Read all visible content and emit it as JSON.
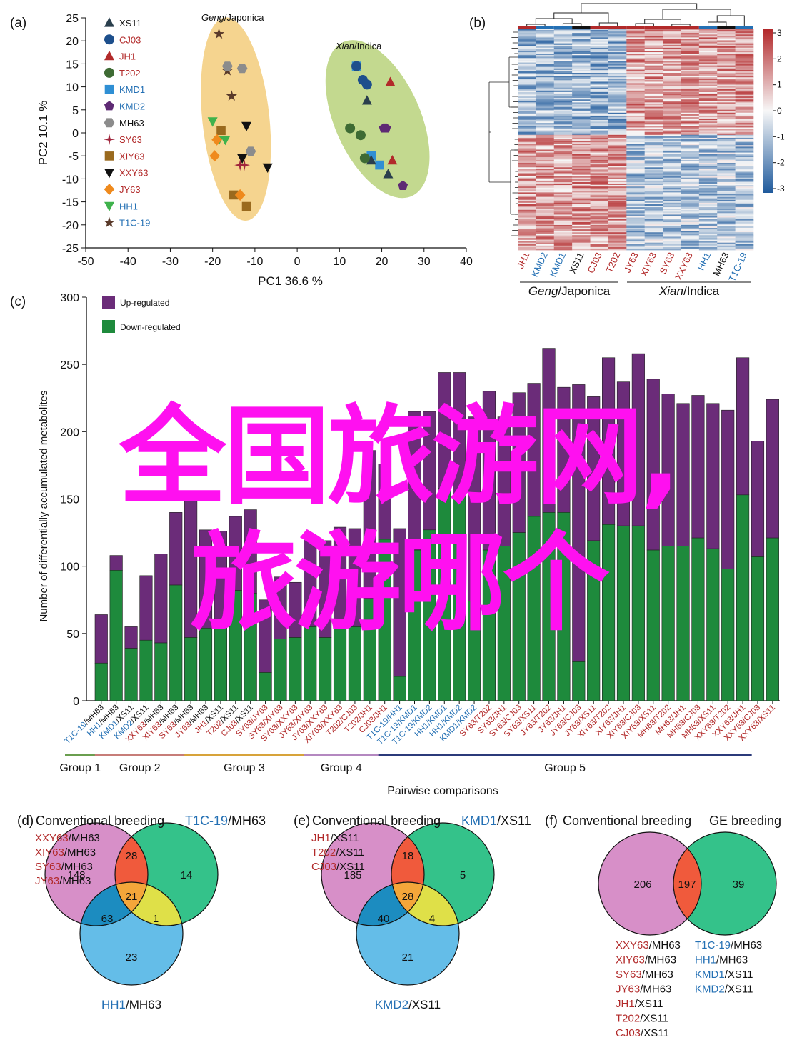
{
  "panel_labels": {
    "a": "(a)",
    "b": "(b)",
    "c": "(c)",
    "d": "(d)",
    "e": "(e)",
    "f": "(f)"
  },
  "colors": {
    "red": "#b22a2a",
    "blue": "#2470b4",
    "black": "#111111",
    "purple": "#6b2c79",
    "green": "#1e8a3c",
    "group1": "#6a9e4f",
    "group2": "#c77d78",
    "group3": "#d7a33a",
    "group4": "#b488c0",
    "group5": "#2b3a7a"
  },
  "overlay": {
    "line1": "全国旅游网,",
    "line2": "旅游哪个"
  },
  "chart_data": [
    {
      "type": "scatter",
      "panel": "a",
      "xlabel": "PC1 36.6 %",
      "ylabel": "PC2 10.1 %",
      "xlim": [
        -50,
        40
      ],
      "ylim": [
        -25,
        25
      ],
      "xticks": [
        "-50",
        "-40",
        "-30",
        "-20",
        "-10",
        "0",
        "10",
        "20",
        "30",
        "40"
      ],
      "yticks": [
        "-25",
        "-20",
        "-15",
        "-10",
        "-5",
        "0",
        "5",
        "10",
        "15",
        "20",
        "25"
      ],
      "clusters": [
        {
          "label": "Geng/Japonica",
          "italic": "Geng",
          "rest": "/Japonica",
          "color": "#f5d48f"
        },
        {
          "label": "Xian/Indica",
          "italic": "Xian",
          "rest": "/Indica",
          "color": "#c3d98f"
        }
      ],
      "legend": [
        {
          "name": "XS11",
          "marker": "triangle-up",
          "color": "#2a3f4d",
          "text_color": "#111111"
        },
        {
          "name": "CJ03",
          "marker": "circle",
          "color": "#1d4f8c",
          "text_color": "#b22a2a"
        },
        {
          "name": "JH1",
          "marker": "triangle-up",
          "color": "#b22a2a",
          "text_color": "#b22a2a"
        },
        {
          "name": "T202",
          "marker": "circle",
          "color": "#3e6b34",
          "text_color": "#b22a2a"
        },
        {
          "name": "KMD1",
          "marker": "square",
          "color": "#2f8fd4",
          "text_color": "#2470b4"
        },
        {
          "name": "KMD2",
          "marker": "pentagon",
          "color": "#5e2a74",
          "text_color": "#2470b4"
        },
        {
          "name": "MH63",
          "marker": "hexagon",
          "color": "#8c8c8c",
          "text_color": "#111111"
        },
        {
          "name": "SY63",
          "marker": "star4",
          "color": "#a0253c",
          "text_color": "#b22a2a"
        },
        {
          "name": "XIY63",
          "marker": "square",
          "color": "#9a6a1e",
          "text_color": "#b22a2a"
        },
        {
          "name": "XXY63",
          "marker": "triangle-down",
          "color": "#111111",
          "text_color": "#b22a2a"
        },
        {
          "name": "JY63",
          "marker": "diamond",
          "color": "#ef8a1d",
          "text_color": "#b22a2a"
        },
        {
          "name": "HH1",
          "marker": "triangle-down",
          "color": "#3fb24c",
          "text_color": "#2470b4"
        },
        {
          "name": "T1C-19",
          "marker": "star5",
          "color": "#5a3a2a",
          "text_color": "#2470b4"
        }
      ],
      "points": [
        {
          "s": "T1C-19",
          "x": -18.5,
          "y": 21.5
        },
        {
          "s": "T1C-19",
          "x": -16.5,
          "y": 13.5
        },
        {
          "s": "T1C-19",
          "x": -15.5,
          "y": 8
        },
        {
          "s": "MH63",
          "x": -16.5,
          "y": 14.5
        },
        {
          "s": "MH63",
          "x": -13,
          "y": 14
        },
        {
          "s": "MH63",
          "x": -11,
          "y": -4
        },
        {
          "s": "XXY63",
          "x": -12,
          "y": 1.5
        },
        {
          "s": "XXY63",
          "x": -13,
          "y": -5.5
        },
        {
          "s": "XXY63",
          "x": -7,
          "y": -7.5
        },
        {
          "s": "HH1",
          "x": -20,
          "y": 2.5
        },
        {
          "s": "HH1",
          "x": -18.5,
          "y": -1.5
        },
        {
          "s": "HH1",
          "x": -17,
          "y": -1.5
        },
        {
          "s": "XIY63",
          "x": -18,
          "y": 0.5
        },
        {
          "s": "XIY63",
          "x": -15,
          "y": -13.5
        },
        {
          "s": "XIY63",
          "x": -12,
          "y": -16
        },
        {
          "s": "JY63",
          "x": -19,
          "y": -1.5
        },
        {
          "s": "JY63",
          "x": -19.5,
          "y": -5
        },
        {
          "s": "JY63",
          "x": -13.5,
          "y": -13.5
        },
        {
          "s": "SY63",
          "x": -13.5,
          "y": -7
        },
        {
          "s": "SY63",
          "x": -12.5,
          "y": -7
        },
        {
          "s": "KMD1",
          "x": 14,
          "y": 14.5
        },
        {
          "s": "KMD1",
          "x": 17.5,
          "y": -5
        },
        {
          "s": "KMD1",
          "x": 19.5,
          "y": -7
        },
        {
          "s": "CJ03",
          "x": 14,
          "y": 14.5
        },
        {
          "s": "CJ03",
          "x": 15.5,
          "y": 11.5
        },
        {
          "s": "CJ03",
          "x": 16.5,
          "y": 10.5
        },
        {
          "s": "JH1",
          "x": 22,
          "y": 11
        },
        {
          "s": "JH1",
          "x": 22.5,
          "y": -6
        },
        {
          "s": "XS11",
          "x": 16.5,
          "y": 7
        },
        {
          "s": "XS11",
          "x": 17.5,
          "y": -6
        },
        {
          "s": "XS11",
          "x": 21.5,
          "y": -9
        },
        {
          "s": "T202",
          "x": 12.5,
          "y": 1
        },
        {
          "s": "T202",
          "x": 15,
          "y": -0.5
        },
        {
          "s": "T202",
          "x": 16,
          "y": -5.5
        },
        {
          "s": "KMD2",
          "x": 20.5,
          "y": 1
        },
        {
          "s": "KMD2",
          "x": 21,
          "y": 1
        },
        {
          "s": "KMD2",
          "x": 25,
          "y": -11.5
        }
      ]
    },
    {
      "type": "heatmap",
      "panel": "b",
      "colorbar_ticks": [
        "3",
        "2",
        "1",
        "0",
        "-1",
        "-2",
        "-3"
      ],
      "columns": [
        {
          "name": "JH1",
          "color": "#b22a2a"
        },
        {
          "name": "KMD2",
          "color": "#2470b4"
        },
        {
          "name": "KMD1",
          "color": "#2470b4"
        },
        {
          "name": "XS11",
          "color": "#111111"
        },
        {
          "name": "CJ03",
          "color": "#b22a2a"
        },
        {
          "name": "T202",
          "color": "#b22a2a"
        },
        {
          "name": "JY63",
          "color": "#b22a2a"
        },
        {
          "name": "XIY63",
          "color": "#b22a2a"
        },
        {
          "name": "SY63",
          "color": "#b22a2a"
        },
        {
          "name": "XXY63",
          "color": "#b22a2a"
        },
        {
          "name": "HH1",
          "color": "#2470b4"
        },
        {
          "name": "MH63",
          "color": "#111111"
        },
        {
          "name": "T1C-19",
          "color": "#2470b4"
        }
      ],
      "group_labels": [
        {
          "italic": "Geng",
          "rest": "/Japonica"
        },
        {
          "italic": "Xian",
          "rest": "/Indica"
        }
      ]
    },
    {
      "type": "bar",
      "panel": "c",
      "stacked": true,
      "ylabel": "Number of differentially accumulated metabolites",
      "xlabel": "Pairwise comparisons",
      "ylim": [
        0,
        300
      ],
      "yticks": [
        "0",
        "50",
        "100",
        "150",
        "200",
        "250",
        "300"
      ],
      "legend": [
        {
          "name": "Up-regulated",
          "color": "#6b2c79"
        },
        {
          "name": "Down-regulated",
          "color": "#1e8a3c"
        }
      ],
      "categories": [
        {
          "a": "T1C-19",
          "ac": "#2470b4",
          "b": "MH63",
          "bc": "#111111"
        },
        {
          "a": "HH1",
          "ac": "#2470b4",
          "b": "MH63",
          "bc": "#111111"
        },
        {
          "a": "KMD1",
          "ac": "#2470b4",
          "b": "XS11",
          "bc": "#111111"
        },
        {
          "a": "KMD2",
          "ac": "#2470b4",
          "b": "XS11",
          "bc": "#111111"
        },
        {
          "a": "XXY63",
          "ac": "#b22a2a",
          "b": "MH63",
          "bc": "#111111"
        },
        {
          "a": "XIY63",
          "ac": "#b22a2a",
          "b": "MH63",
          "bc": "#111111"
        },
        {
          "a": "SY63",
          "ac": "#b22a2a",
          "b": "MH63",
          "bc": "#111111"
        },
        {
          "a": "JY63",
          "ac": "#b22a2a",
          "b": "MH63",
          "bc": "#111111"
        },
        {
          "a": "JH1",
          "ac": "#b22a2a",
          "b": "XS11",
          "bc": "#111111"
        },
        {
          "a": "T202",
          "ac": "#b22a2a",
          "b": "XS11",
          "bc": "#111111"
        },
        {
          "a": "CJ03",
          "ac": "#b22a2a",
          "b": "XS11",
          "bc": "#111111"
        },
        {
          "a": "SY63",
          "ac": "#b22a2a",
          "b": "JY63",
          "bc": "#b22a2a"
        },
        {
          "a": "SY63",
          "ac": "#b22a2a",
          "b": "XIY63",
          "bc": "#b22a2a"
        },
        {
          "a": "SY63",
          "ac": "#b22a2a",
          "b": "XXY63",
          "bc": "#b22a2a"
        },
        {
          "a": "JY63",
          "ac": "#b22a2a",
          "b": "XIY63",
          "bc": "#b22a2a"
        },
        {
          "a": "JY63",
          "ac": "#b22a2a",
          "b": "XXY63",
          "bc": "#b22a2a"
        },
        {
          "a": "XIY63",
          "ac": "#b22a2a",
          "b": "XXY63",
          "bc": "#b22a2a"
        },
        {
          "a": "T202",
          "ac": "#b22a2a",
          "b": "CJ03",
          "bc": "#b22a2a"
        },
        {
          "a": "T202",
          "ac": "#b22a2a",
          "b": "JH1",
          "bc": "#b22a2a"
        },
        {
          "a": "CJ03",
          "ac": "#b22a2a",
          "b": "JH1",
          "bc": "#b22a2a"
        },
        {
          "a": "T1C-19",
          "ac": "#2470b4",
          "b": "HH1",
          "bc": "#2470b4"
        },
        {
          "a": "T1C-19",
          "ac": "#2470b4",
          "b": "KMD1",
          "bc": "#2470b4"
        },
        {
          "a": "T1C-19",
          "ac": "#2470b4",
          "b": "KMD2",
          "bc": "#2470b4"
        },
        {
          "a": "HH1",
          "ac": "#2470b4",
          "b": "KMD1",
          "bc": "#2470b4"
        },
        {
          "a": "HH1",
          "ac": "#2470b4",
          "b": "KMD2",
          "bc": "#2470b4"
        },
        {
          "a": "KMD1",
          "ac": "#2470b4",
          "b": "KMD2",
          "bc": "#2470b4"
        },
        {
          "a": "SY63",
          "ac": "#b22a2a",
          "b": "T202",
          "bc": "#b22a2a"
        },
        {
          "a": "SY63",
          "ac": "#b22a2a",
          "b": "JH1",
          "bc": "#b22a2a"
        },
        {
          "a": "SY63",
          "ac": "#b22a2a",
          "b": "CJ03",
          "bc": "#b22a2a"
        },
        {
          "a": "SY63",
          "ac": "#b22a2a",
          "b": "XS11",
          "bc": "#b22a2a"
        },
        {
          "a": "JY63",
          "ac": "#b22a2a",
          "b": "T202",
          "bc": "#b22a2a"
        },
        {
          "a": "JY63",
          "ac": "#b22a2a",
          "b": "JH1",
          "bc": "#b22a2a"
        },
        {
          "a": "JY63",
          "ac": "#b22a2a",
          "b": "CJ03",
          "bc": "#b22a2a"
        },
        {
          "a": "JY63",
          "ac": "#b22a2a",
          "b": "XS11",
          "bc": "#b22a2a"
        },
        {
          "a": "XIY63",
          "ac": "#b22a2a",
          "b": "T202",
          "bc": "#b22a2a"
        },
        {
          "a": "XIY63",
          "ac": "#b22a2a",
          "b": "JH1",
          "bc": "#b22a2a"
        },
        {
          "a": "XIY63",
          "ac": "#b22a2a",
          "b": "CJ03",
          "bc": "#b22a2a"
        },
        {
          "a": "XIY63",
          "ac": "#b22a2a",
          "b": "XS11",
          "bc": "#b22a2a"
        },
        {
          "a": "MH63",
          "ac": "#b22a2a",
          "b": "T202",
          "bc": "#b22a2a"
        },
        {
          "a": "MH63",
          "ac": "#b22a2a",
          "b": "JH1",
          "bc": "#b22a2a"
        },
        {
          "a": "MH63",
          "ac": "#b22a2a",
          "b": "CJ03",
          "bc": "#b22a2a"
        },
        {
          "a": "MH63",
          "ac": "#b22a2a",
          "b": "XS11",
          "bc": "#b22a2a"
        },
        {
          "a": "XXY63",
          "ac": "#b22a2a",
          "b": "T202",
          "bc": "#b22a2a"
        },
        {
          "a": "XXY63",
          "ac": "#b22a2a",
          "b": "JH1",
          "bc": "#b22a2a"
        },
        {
          "a": "XXY63",
          "ac": "#b22a2a",
          "b": "CJ03",
          "bc": "#b22a2a"
        },
        {
          "a": "XXY63",
          "ac": "#b22a2a",
          "b": "XS11",
          "bc": "#b22a2a"
        }
      ],
      "series": [
        {
          "name": "Down-regulated",
          "values": [
            28,
            97,
            39,
            45,
            43,
            86,
            47,
            54,
            55,
            82,
            80,
            21,
            46,
            47,
            55,
            47,
            56,
            55,
            76,
            120,
            18,
            112,
            127,
            158,
            153,
            74,
            112,
            115,
            125,
            137,
            140,
            140,
            29,
            119,
            131,
            130,
            130,
            112,
            115,
            115,
            121,
            113,
            98,
            153,
            107,
            121
          ]
        },
        {
          "name": "Up-regulated",
          "values": [
            36,
            11,
            16,
            48,
            66,
            54,
            105,
            73,
            71,
            55,
            62,
            54,
            46,
            41,
            66,
            72,
            73,
            73,
            110,
            56,
            110,
            103,
            88,
            86,
            91,
            137,
            118,
            96,
            104,
            99,
            122,
            93,
            206,
            107,
            124,
            107,
            128,
            127,
            113,
            106,
            106,
            108,
            118,
            102,
            86,
            103
          ]
        }
      ],
      "groups": [
        {
          "name": "Group 1",
          "color": "#6a9e4f",
          "from": 0,
          "to": 1
        },
        {
          "name": "Group 2",
          "color": "#c77d78",
          "from": 2,
          "to": 7
        },
        {
          "name": "Group 3",
          "color": "#d7a33a",
          "from": 8,
          "to": 15
        },
        {
          "name": "Group 4",
          "color": "#b488c0",
          "from": 16,
          "to": 20
        },
        {
          "name": "Group 5",
          "color": "#2b3a7a",
          "from": 21,
          "to": 45
        }
      ]
    },
    {
      "type": "venn",
      "panel": "d",
      "headers": [
        {
          "text": "Conventional breeding",
          "color": "#111111"
        },
        {
          "a": "T1C-19",
          "b": "/MH63"
        }
      ],
      "left_list": [
        {
          "a": "XXY63",
          "b": "/MH63"
        },
        {
          "a": "XIY63",
          "b": "/MH63"
        },
        {
          "a": "SY63",
          "b": "/MH63"
        },
        {
          "a": "JY63",
          "b": "/MH63"
        }
      ],
      "bottom_label": {
        "a": "HH1",
        "b": "/MH63"
      },
      "values": {
        "a_only": "148",
        "b_only": "14",
        "c_only": "23",
        "ab": "28",
        "ac": "63",
        "bc": "1",
        "abc": "21"
      }
    },
    {
      "type": "venn",
      "panel": "e",
      "headers": [
        {
          "text": "Conventional breeding"
        },
        {
          "a": "KMD1",
          "b": "/XS11"
        }
      ],
      "left_list": [
        {
          "a": "JH1",
          "b": "/XS11"
        },
        {
          "a": "T202",
          "b": "/XS11"
        },
        {
          "a": "CJ03",
          "b": "/XS11"
        }
      ],
      "bottom_label": {
        "a": "KMD2",
        "b": "/XS11"
      },
      "values": {
        "a_only": "185",
        "b_only": "5",
        "c_only": "21",
        "ab": "18",
        "ac": "40",
        "bc": "4",
        "abc": "28"
      }
    },
    {
      "type": "venn",
      "panel": "f",
      "headers": [
        {
          "text": "Conventional breeding"
        },
        {
          "text": "GE breeding"
        }
      ],
      "values": {
        "a_only": "206",
        "ab": "197",
        "b_only": "39"
      },
      "left_list": [
        {
          "a": "XXY63",
          "b": "/MH63"
        },
        {
          "a": "XIY63",
          "b": "/MH63"
        },
        {
          "a": "SY63",
          "b": "/MH63"
        },
        {
          "a": "JY63",
          "b": "/MH63"
        },
        {
          "a": "JH1",
          "b": "/XS11"
        },
        {
          "a": "T202",
          "b": "/XS11"
        },
        {
          "a": "CJ03",
          "b": "/XS11"
        }
      ],
      "right_list": [
        {
          "a": "T1C-19",
          "b": "/MH63"
        },
        {
          "a": "HH1",
          "b": "/MH63"
        },
        {
          "a": "KMD1",
          "b": "/XS11"
        },
        {
          "a": "KMD2",
          "b": "/XS11"
        }
      ]
    }
  ]
}
